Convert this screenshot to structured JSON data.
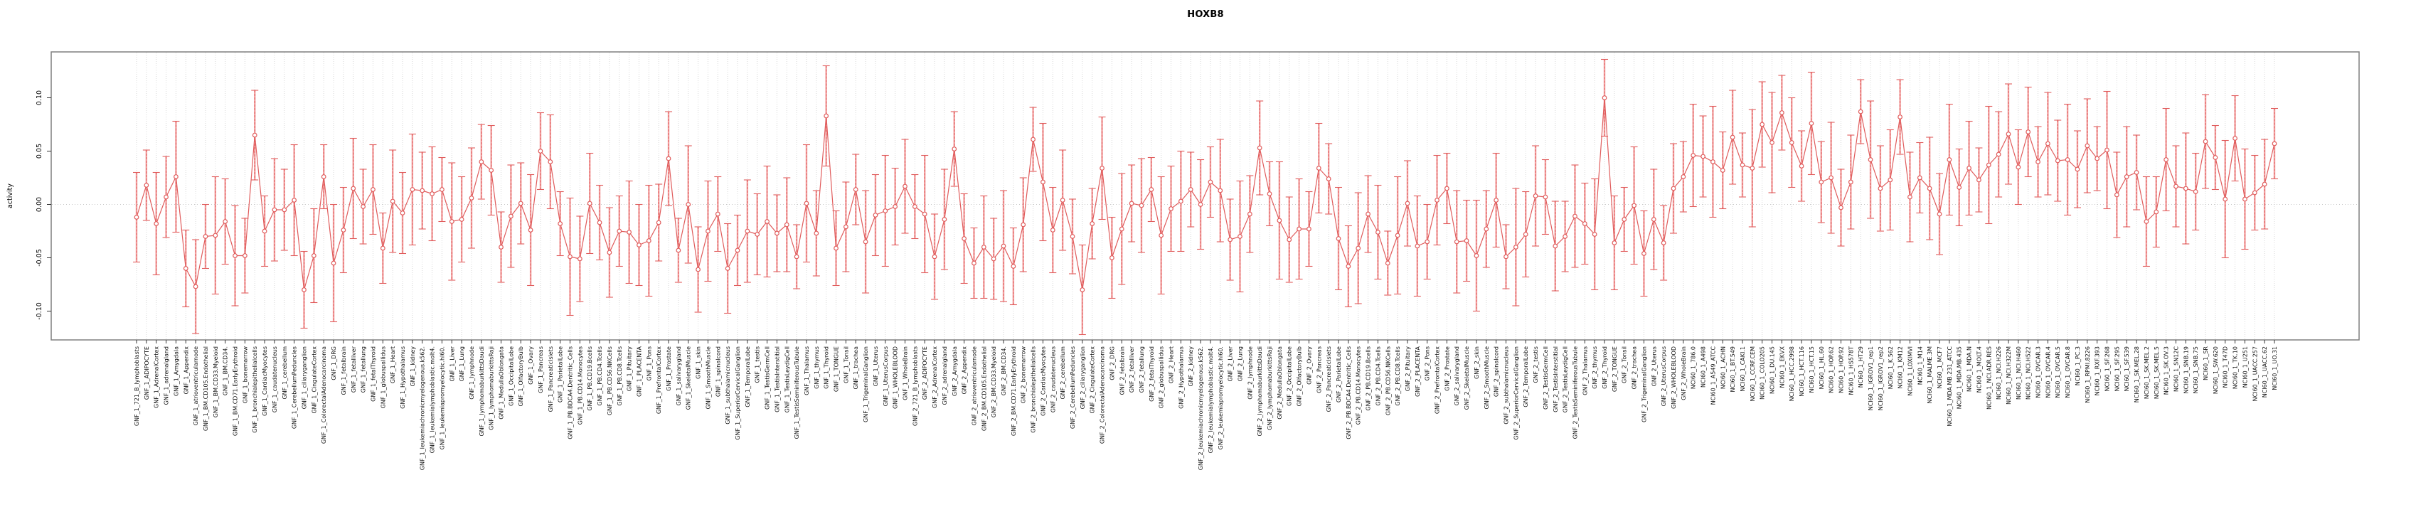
{
  "page": {
    "background": "#ffffff"
  },
  "chart_data": {
    "type": "line",
    "style": "open-circle points connected by line, with error bars (R plotCI style)",
    "title": "HOXB8",
    "xlabel": "",
    "ylabel": "activity",
    "ylim": [
      -0.127,
      0.143
    ],
    "yticks": [
      0.1,
      0.05,
      0.0,
      -0.05,
      -0.1
    ],
    "ytick_labels": [
      "0.10",
      "0.05",
      "0.00",
      "-0.05",
      "-0.10"
    ],
    "grid": "light dotted vertical line per sample; dotted horizontal line at 0",
    "legend_position": "none",
    "groups": [
      {
        "name": "GNF_1",
        "count": 79
      },
      {
        "name": "GNF_2",
        "count": 79
      },
      {
        "name": "NCI60_1",
        "count": 60
      }
    ],
    "colors": {
      "point_line": "#e05c5c",
      "error_bar": "#f2a2a2",
      "error_bar_dash": "#e05c5c",
      "grid": "#d8d8d8",
      "zero_line": "#c8c8c8",
      "box": "#7f7f7f",
      "tick": "#333333",
      "label_text": "#111111"
    },
    "categories": [
      "GNF_1_721_B_lymphoblasts",
      "GNF_1_ADIPOCYTE",
      "GNF_1_AdrenalCortex",
      "GNF_1_adrenalgland",
      "GNF_1_Amygdala",
      "GNF_1_Appendix",
      "GNF_1_atrioventricularnode",
      "GNF_1_BM.CD105.Endothelial",
      "GNF_1_BM.CD33.Myeloid",
      "GNF_1_BM.CD34.",
      "GNF_1_BM.CD71.EarlyErythroid",
      "GNF_1_bonemarrow",
      "GNF_1_bronchialepithelialcells",
      "GNF_1_CardiacMyocytes",
      "GNF_1_caudatenucleus",
      "GNF_1_cerebellum",
      "GNF_1_CerebellumPeduncles",
      "GNF_1_ciliaryganglion",
      "GNF_1_CingulateCortex",
      "GNF_1_ColorectalAdenocarcinoma",
      "GNF_1_DRG",
      "GNF_1_fetalbrain",
      "GNF_1_fetalliver",
      "GNF_1_fetallung",
      "GNF_1_fetalThyroid",
      "GNF_1_globuspallidus",
      "GNF_1_Heart",
      "GNF_1_Hypothalamus",
      "GNF_1_kidney",
      "GNF_1_leukemiachronicmyelogenous.k562.",
      "GNF_1_leukemialymphoblastic.molt4.",
      "GNF_1_leukemiapromyelocytic.hl60.",
      "GNF_1_Liver",
      "GNF_1_Lung",
      "GNF_1_lymphnode",
      "GNF_1_lymphomaburkittsDaudi",
      "GNF_1_lymphomaburkittsRaji",
      "GNF_1_MedullaOblongata",
      "GNF_1_OccipitalLobe",
      "GNF_1_OlfactoryBulb",
      "GNF_1_Ovary",
      "GNF_1_Pancreas",
      "GNF_1_PancreaticIslets",
      "GNF_1_ParietalLobe",
      "GNF_1_PB.BDCA4.Dentritic_Cells",
      "GNF_1_PB.CD14.Monocytes",
      "GNF_1_PB.CD19.Bcells",
      "GNF_1_PB.CD4.Tcells",
      "GNF_1_PB.CD56.NKCells",
      "GNF_1_PB.CD8.Tcells",
      "GNF_1_Pituitary",
      "GNF_1_PLACENTA",
      "GNF_1_Pons",
      "GNF_1_PrefrontalCortex",
      "GNF_1_Prostate",
      "GNF_1_salivarygland",
      "GNF_1_SkeletalMuscle",
      "GNF_1_skin",
      "GNF_1_SmoothMuscle",
      "GNF_1_spinalcord",
      "GNF_1_subthalamicnucleus",
      "GNF_1_SuperiorCervicalGanglion",
      "GNF_1_TemporalLobe",
      "GNF_1_testis",
      "GNF_1_TestisGermCell",
      "GNF_1_TestisInterstitial",
      "GNF_1_TestisLeydigCell",
      "GNF_1_TestisSeminiferousTubule",
      "GNF_1_Thalamus",
      "GNF_1_thymus",
      "GNF_1_Thyroid",
      "GNF_1_TONGUE",
      "GNF_1_Tonsil",
      "GNF_1_trachea",
      "GNF_1_TrigeminalGanglion",
      "GNF_1_Uterus",
      "GNF_1_UterusCorpus",
      "GNF_1_WHOLEBLOOD",
      "GNF_1_WholeBrain",
      "GNF_2_721_B_lymphoblasts",
      "GNF_2_ADIPOCYTE",
      "GNF_2_AdrenalCortex",
      "GNF_2_adrenalgland",
      "GNF_2_Amygdala",
      "GNF_2_Appendix",
      "GNF_2_atrioventricularnode",
      "GNF_2_BM.CD105.Endothelial",
      "GNF_2_BM.CD33.Myeloid",
      "GNF_2_BM.CD34.",
      "GNF_2_BM.CD71.EarlyErythroid",
      "GNF_2_bonemarrow",
      "GNF_2_bronchialepithelialcells",
      "GNF_2_CardiacMyocytes",
      "GNF_2_caudatenucleus",
      "GNF_2_cerebellum",
      "GNF_2_CerebellumPeduncles",
      "GNF_2_ciliaryganglion",
      "GNF_2_CingulateCortex",
      "GNF_2_ColorectalAdenocarcinoma",
      "GNF_2_DRG",
      "GNF_2_fetalbrain",
      "GNF_2_fetalliver",
      "GNF_2_fetallung",
      "GNF_2_fetalThyroid",
      "GNF_2_globuspallidus",
      "GNF_2_Heart",
      "GNF_2_Hypothalamus",
      "GNF_2_kidney",
      "GNF_2_leukemiachronicmyelogenous.k562.",
      "GNF_2_leukemialymphoblastic.molt4.",
      "GNF_2_leukemiapromyelocytic.hl60.",
      "GNF_2_Liver",
      "GNF_2_Lung",
      "GNF_2_lymphnode",
      "GNF_2_lymphomaburkittsDaudi",
      "GNF_2_lymphomaburkittsRaji",
      "GNF_2_MedullaOblongata",
      "GNF_2_OccipitalLobe",
      "GNF_2_OlfactoryBulb",
      "GNF_2_Ovary",
      "GNF_2_Pancreas",
      "GNF_2_PancreaticIslets",
      "GNF_2_ParietalLobe",
      "GNF_2_PB.BDCA4.Dentritic_Cells",
      "GNF_2_PB.CD14.Monocytes",
      "GNF_2_PB.CD19.Bcells",
      "GNF_2_PB.CD4.Tcells",
      "GNF_2_PB.CD56.NKCells",
      "GNF_2_PB.CD8.Tcells",
      "GNF_2_Pituitary",
      "GNF_2_PLACENTA",
      "GNF_2_Pons",
      "GNF_2_PrefrontalCortex",
      "GNF_2_Prostate",
      "GNF_2_salivarygland",
      "GNF_2_SkeletalMuscle",
      "GNF_2_skin",
      "GNF_2_SmoothMuscle",
      "GNF_2_spinalcord",
      "GNF_2_subthalamicnucleus",
      "GNF_2_SuperiorCervicalGanglion",
      "GNF_2_TemporalLobe",
      "GNF_2_testis",
      "GNF_2_TestisGermCell",
      "GNF_2_TestisInterstitial",
      "GNF_2_TestisLeydigCell",
      "GNF_2_TestisSeminiferousTubule",
      "GNF_2_Thalamus",
      "GNF_2_thymus",
      "GNF_2_Thyroid",
      "GNF_2_TONGUE",
      "GNF_2_Tonsil",
      "GNF_2_trachea",
      "GNF_2_TrigeminalGanglion",
      "GNF_2_Uterus",
      "GNF_2_UterusCorpus",
      "GNF_2_WHOLEBLOOD",
      "GNF_2_WholeBrain",
      "NCI60_1_786.0",
      "NCI60_1_A498",
      "NCI60_1_A549_ATCC",
      "NCI60_1_ACHN",
      "NCI60_1_BT.549",
      "NCI60_1_CAKI.1",
      "NCI60_1_CCRF.CEM",
      "NCI60_1_COLO205",
      "NCI60_1_DU.145",
      "NCI60_1_EKVX",
      "NCI60_1_HCC.2998",
      "NCI60_1_HCT.116",
      "NCI60_1_HCT.15",
      "NCI60_1_HL.60",
      "NCI60_1_HOP.62",
      "NCI60_1_HOP.92",
      "NCI60_1_HS578T",
      "NCI60_1_HT29",
      "NCI60_1_IGROV1_rep1",
      "NCI60_1_IGROV1_rep2",
      "NCI60_1_K.562",
      "NCI60_1_KM12",
      "NCI60_1_LOXIMVI",
      "NCI60_1_M14",
      "NCI60_1_MALME.3M",
      "NCI60_1_MCF7",
      "NCI60_1_MDA.MB.231_ATCC",
      "NCI60_1_MDA.MB.435",
      "NCI60_1_MDA.N",
      "NCI60_1_MOLT.4",
      "NCI60_1_NCI.ADR.RES",
      "NCI60_1_NCI.H226",
      "NCI60_1_NCI.H322M",
      "NCI60_1_NCI.H460",
      "NCI60_1_NCI.H522",
      "NCI60_1_OVCAR.3",
      "NCI60_1_OVCAR.4",
      "NCI60_1_OVCAR.5",
      "NCI60_1_OVCAR.8",
      "NCI60_1_PC.3",
      "NCI60_1_RPMI.8226",
      "NCI60_1_RXF.393",
      "NCI60_1_SF.268",
      "NCI60_1_SF.295",
      "NCI60_1_SF.539",
      "NCI60_1_SK.MEL.28",
      "NCI60_1_SK.MEL.2",
      "NCI60_1_SK.MEL.5",
      "NCI60_1_SK.OV.3",
      "NCI60_1_SN12C",
      "NCI60_1_SNB.19",
      "NCI60_1_SNB.75",
      "NCI60_1_SR",
      "NCI60_1_SW.620",
      "NCI60_1_T47D",
      "NCI60_1_TK.10",
      "NCI60_1_U251",
      "NCI60_1_UACC.257",
      "NCI60_1_UACC.62",
      "NCI60_1_UO.31"
    ],
    "values": [
      -0.012,
      0.018,
      -0.018,
      0.007,
      0.026,
      -0.06,
      -0.077,
      -0.03,
      -0.029,
      -0.016,
      -0.048,
      -0.048,
      0.065,
      -0.025,
      -0.005,
      -0.005,
      0.004,
      -0.08,
      -0.048,
      0.026,
      -0.055,
      -0.024,
      0.015,
      -0.002,
      0.014,
      -0.041,
      0.003,
      -0.008,
      0.014,
      0.013,
      0.01,
      0.014,
      -0.016,
      -0.014,
      0.006,
      0.04,
      0.032,
      -0.04,
      -0.011,
      0.001,
      -0.024,
      0.05,
      0.04,
      -0.018,
      -0.049,
      -0.051,
      0.001,
      -0.017,
      -0.045,
      -0.025,
      -0.026,
      -0.038,
      -0.034,
      -0.017,
      0.043,
      -0.043,
      0.0,
      -0.061,
      -0.025,
      -0.009,
      -0.06,
      -0.043,
      -0.025,
      -0.028,
      -0.016,
      -0.027,
      -0.019,
      -0.049,
      0.001,
      -0.027,
      0.083,
      -0.041,
      -0.021,
      0.014,
      -0.035,
      -0.01,
      -0.006,
      -0.002,
      0.017,
      -0.002,
      -0.009,
      -0.049,
      -0.014,
      0.052,
      -0.032,
      -0.055,
      -0.04,
      -0.051,
      -0.039,
      -0.058,
      -0.019,
      0.061,
      0.021,
      -0.024,
      0.004,
      -0.03,
      -0.08,
      -0.018,
      0.034,
      -0.05,
      -0.023,
      0.001,
      -0.001,
      0.014,
      -0.029,
      -0.004,
      0.003,
      0.014,
      0.0,
      0.021,
      0.013,
      -0.033,
      -0.03,
      -0.009,
      0.053,
      0.01,
      -0.015,
      -0.033,
      -0.023,
      -0.023,
      0.034,
      0.024,
      -0.032,
      -0.058,
      -0.041,
      -0.009,
      -0.026,
      -0.055,
      -0.029,
      0.001,
      -0.039,
      -0.035,
      0.004,
      0.015,
      -0.035,
      -0.034,
      -0.048,
      -0.023,
      0.004,
      -0.049,
      -0.04,
      -0.028,
      0.008,
      0.007,
      -0.039,
      -0.03,
      -0.011,
      -0.018,
      -0.028,
      0.1,
      -0.036,
      -0.014,
      -0.001,
      -0.046,
      -0.014,
      -0.036,
      0.015,
      0.026,
      0.046,
      0.045,
      0.04,
      0.032,
      0.063,
      0.037,
      0.034,
      0.075,
      0.058,
      0.086,
      0.058,
      0.036,
      0.076,
      0.021,
      0.025,
      -0.003,
      0.021,
      0.087,
      0.042,
      0.015,
      0.023,
      0.082,
      0.007,
      0.025,
      0.015,
      -0.009,
      0.042,
      0.016,
      0.034,
      0.023,
      0.037,
      0.047,
      0.066,
      0.035,
      0.068,
      0.04,
      0.057,
      0.041,
      0.042,
      0.033,
      0.055,
      0.043,
      0.051,
      0.009,
      0.026,
      0.03,
      -0.016,
      -0.007,
      0.042,
      0.017,
      0.015,
      0.012,
      0.059,
      0.044,
      0.005,
      0.062,
      0.005,
      0.011,
      0.019,
      0.057
    ],
    "error_half_widths": [
      0.042,
      0.033,
      0.048,
      0.038,
      0.052,
      0.036,
      0.044,
      0.03,
      0.055,
      0.04,
      0.047,
      0.035,
      0.042,
      0.033,
      0.048,
      0.038,
      0.052,
      0.036,
      0.044,
      0.03,
      0.055,
      0.04,
      0.047,
      0.035,
      0.042,
      0.033,
      0.048,
      0.038,
      0.052,
      0.036,
      0.044,
      0.03,
      0.055,
      0.04,
      0.047,
      0.035,
      0.042,
      0.033,
      0.048,
      0.038,
      0.052,
      0.036,
      0.044,
      0.03,
      0.055,
      0.04,
      0.047,
      0.035,
      0.042,
      0.033,
      0.048,
      0.038,
      0.052,
      0.036,
      0.044,
      0.03,
      0.055,
      0.04,
      0.047,
      0.035,
      0.042,
      0.033,
      0.048,
      0.038,
      0.052,
      0.036,
      0.044,
      0.03,
      0.055,
      0.04,
      0.047,
      0.035,
      0.042,
      0.033,
      0.048,
      0.038,
      0.052,
      0.036,
      0.044,
      0.03,
      0.055,
      0.04,
      0.047,
      0.035,
      0.042,
      0.033,
      0.048,
      0.038,
      0.052,
      0.036,
      0.044,
      0.03,
      0.055,
      0.04,
      0.047,
      0.035,
      0.042,
      0.033,
      0.048,
      0.038,
      0.052,
      0.036,
      0.044,
      0.03,
      0.055,
      0.04,
      0.047,
      0.035,
      0.042,
      0.033,
      0.048,
      0.038,
      0.052,
      0.036,
      0.044,
      0.03,
      0.055,
      0.04,
      0.047,
      0.035,
      0.042,
      0.033,
      0.048,
      0.038,
      0.052,
      0.036,
      0.044,
      0.03,
      0.055,
      0.04,
      0.047,
      0.035,
      0.042,
      0.033,
      0.048,
      0.038,
      0.052,
      0.036,
      0.044,
      0.03,
      0.055,
      0.04,
      0.047,
      0.035,
      0.042,
      0.033,
      0.048,
      0.038,
      0.052,
      0.036,
      0.044,
      0.03,
      0.055,
      0.04,
      0.047,
      0.035,
      0.042,
      0.033,
      0.048,
      0.038,
      0.052,
      0.036,
      0.044,
      0.03,
      0.055,
      0.04,
      0.047,
      0.035,
      0.042,
      0.033,
      0.048,
      0.038,
      0.052,
      0.036,
      0.044,
      0.03,
      0.055,
      0.04,
      0.047,
      0.035,
      0.042,
      0.033,
      0.048,
      0.038,
      0.052,
      0.036,
      0.044,
      0.03,
      0.055,
      0.04,
      0.047,
      0.035,
      0.042,
      0.033,
      0.048,
      0.038,
      0.052,
      0.036,
      0.044,
      0.03,
      0.055,
      0.04,
      0.047,
      0.035,
      0.042,
      0.033,
      0.048,
      0.038,
      0.052,
      0.036,
      0.044,
      0.03,
      0.055,
      0.04,
      0.047,
      0.035,
      0.042,
      0.033
    ]
  }
}
